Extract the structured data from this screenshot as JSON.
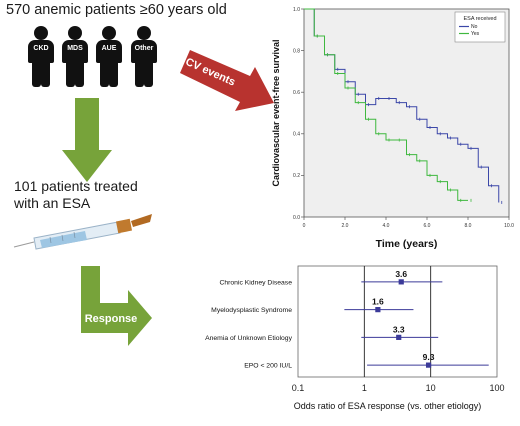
{
  "cohort_title": "570 anemic patients ≥60 years old",
  "groups": [
    "CKD",
    "MDS",
    "AUE",
    "Other"
  ],
  "cv_arrow_label": "CV events",
  "treated_text": "101 patients treated with an ESA",
  "response_arrow_label": "Response",
  "colors": {
    "green_arrow": "#77a33a",
    "red_arrow": "#b8332f",
    "km_no": "#3b47a8",
    "km_yes": "#3fb83f",
    "forest": "#3b3a99"
  },
  "chart_data": [
    {
      "type": "line",
      "title": "",
      "xlabel": "Time (years)",
      "ylabel": "Cardiovascular event-free survival",
      "xlim": [
        0,
        10
      ],
      "ylim": [
        0,
        1
      ],
      "xticks": [
        "0",
        "2.0",
        "4.0",
        "6.0",
        "8.0",
        "10.0"
      ],
      "yticks": [
        "0.0",
        "0.2",
        "0.4",
        "0.6",
        "0.8",
        "1.0"
      ],
      "legend": {
        "title": "ESA received",
        "entries": [
          "No",
          "Yes"
        ],
        "position": "top-right"
      },
      "series": [
        {
          "name": "No",
          "x": [
            0,
            0.5,
            1,
            1.5,
            2,
            2.5,
            3,
            3.5,
            4,
            4.5,
            5,
            5.5,
            6,
            6.5,
            7,
            7.5,
            8,
            8.5,
            9,
            9.5
          ],
          "y": [
            1.0,
            0.87,
            0.78,
            0.71,
            0.65,
            0.59,
            0.54,
            0.57,
            0.57,
            0.55,
            0.53,
            0.47,
            0.43,
            0.4,
            0.38,
            0.35,
            0.33,
            0.24,
            0.15,
            0.07
          ]
        },
        {
          "name": "Yes",
          "x": [
            0,
            0.5,
            1,
            1.5,
            2,
            2.5,
            3,
            3.5,
            4,
            4.5,
            5,
            5.5,
            6,
            6.5,
            7,
            7.5,
            8
          ],
          "y": [
            1.0,
            0.87,
            0.78,
            0.69,
            0.62,
            0.55,
            0.47,
            0.4,
            0.37,
            0.37,
            0.3,
            0.27,
            0.2,
            0.17,
            0.13,
            0.08,
            0.08
          ]
        }
      ]
    },
    {
      "type": "scatter",
      "title": "",
      "xlabel": "Odds ratio of ESA response (vs. other etiology)",
      "xscale": "log",
      "xlim": [
        0.1,
        100
      ],
      "xticks": [
        "0.1",
        "1",
        "10",
        "100"
      ],
      "reference_lines": [
        1,
        10
      ],
      "categories": [
        "Chronic Kidney Disease",
        "Myelodysplastic Syndrome",
        "Anemia of Unknown Etiology",
        "EPO < 200 IU/L"
      ],
      "estimates": [
        3.6,
        1.6,
        3.3,
        9.3
      ],
      "labels": [
        "3.6",
        "1.6",
        "3.3",
        "9.3"
      ],
      "ci_low": [
        0.9,
        0.5,
        0.9,
        1.1
      ],
      "ci_high": [
        15,
        5.5,
        13,
        75
      ]
    }
  ]
}
